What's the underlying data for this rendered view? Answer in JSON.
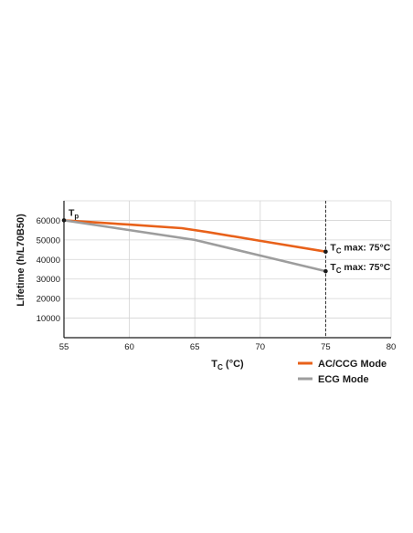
{
  "chart_data": {
    "type": "line",
    "xlabel_main": "T",
    "xlabel_sub": "C",
    "xlabel_unit": " (°C)",
    "ylabel": "Lifetime (h/L70B50)",
    "xlim": [
      55,
      80
    ],
    "ylim": [
      0,
      70000
    ],
    "x_ticks": [
      55,
      60,
      65,
      70,
      75,
      80
    ],
    "y_ticks": [
      10000,
      20000,
      30000,
      40000,
      50000,
      60000
    ],
    "grid": true,
    "legend_position": "bottom-right",
    "reference_line_x": 75,
    "series": [
      {
        "name": "AC/CCG Mode",
        "color": "#e8611a",
        "x": [
          55,
          60,
          64,
          66,
          70,
          75
        ],
        "y": [
          60000,
          57800,
          56000,
          54000,
          49500,
          44000
        ]
      },
      {
        "name": "ECG Mode",
        "color": "#9d9d9d",
        "x": [
          55,
          60,
          65,
          70,
          75
        ],
        "y": [
          60000,
          55000,
          50000,
          42000,
          34000
        ]
      }
    ],
    "annotations": [
      {
        "main": "T",
        "sub": "p",
        "suffix": "",
        "x": 55,
        "y": 60000
      },
      {
        "main": "T",
        "sub": "C",
        "suffix": " max: 75°C",
        "x": 75,
        "y": 44000
      },
      {
        "main": "T",
        "sub": "C",
        "suffix": " max: 75°C",
        "x": 75,
        "y": 34000
      }
    ]
  }
}
